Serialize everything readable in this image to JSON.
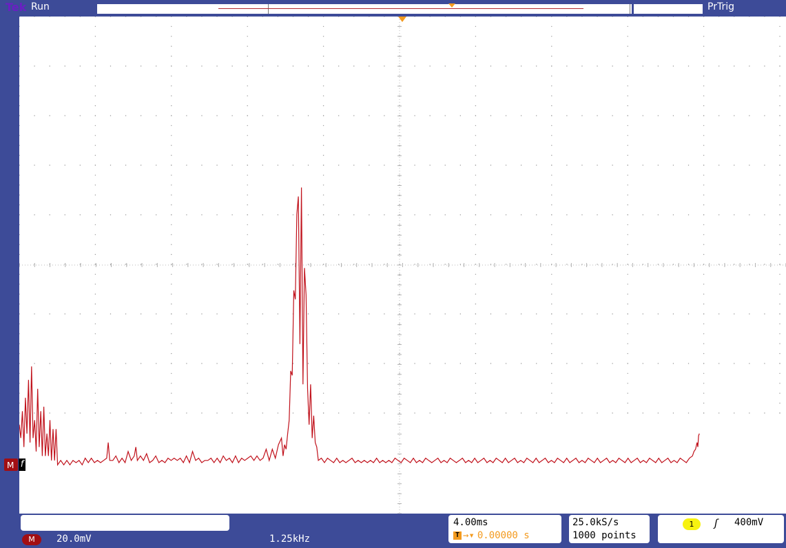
{
  "header": {
    "brand": "Tek",
    "status": "Run",
    "trigger_status": "PrTrig"
  },
  "math": {
    "badge": "M",
    "vertical_scale": "20.0mV",
    "frequency": "1.25kHz"
  },
  "horizontal": {
    "scale": "4.00ms",
    "trigger_badge": "T",
    "position": "0.00000 s"
  },
  "acquisition": {
    "sample_rate": "25.0kS/s",
    "record_length": "1000 points"
  },
  "trigger": {
    "channel": "1",
    "slope_symbol": "ʃ",
    "level": "400mV"
  },
  "colors": {
    "frame": "#3d4b98",
    "trace": "#c0101a",
    "trigger_marker": "#f39a1e",
    "channel1": "#f7f210",
    "brand": "#6a1fc3"
  },
  "waveform": {
    "description_units": "divisions",
    "divisions_x": 10,
    "divisions_y": 8,
    "points": [
      [
        0.0,
        1.3
      ],
      [
        0.02,
        1.0
      ],
      [
        0.04,
        1.6
      ],
      [
        0.06,
        0.8
      ],
      [
        0.08,
        1.9
      ],
      [
        0.1,
        1.1
      ],
      [
        0.12,
        2.3
      ],
      [
        0.14,
        0.9
      ],
      [
        0.16,
        2.6
      ],
      [
        0.18,
        1.0
      ],
      [
        0.2,
        1.4
      ],
      [
        0.22,
        0.7
      ],
      [
        0.24,
        2.1
      ],
      [
        0.26,
        0.8
      ],
      [
        0.28,
        1.6
      ],
      [
        0.3,
        0.6
      ],
      [
        0.32,
        1.7
      ],
      [
        0.34,
        0.6
      ],
      [
        0.36,
        1.1
      ],
      [
        0.38,
        0.6
      ],
      [
        0.4,
        1.4
      ],
      [
        0.42,
        0.5
      ],
      [
        0.44,
        1.2
      ],
      [
        0.46,
        0.5
      ],
      [
        0.48,
        1.2
      ],
      [
        0.5,
        0.4
      ],
      [
        0.54,
        0.5
      ],
      [
        0.58,
        0.4
      ],
      [
        0.62,
        0.5
      ],
      [
        0.66,
        0.4
      ],
      [
        0.7,
        0.5
      ],
      [
        0.74,
        0.45
      ],
      [
        0.78,
        0.5
      ],
      [
        0.82,
        0.4
      ],
      [
        0.86,
        0.55
      ],
      [
        0.9,
        0.45
      ],
      [
        0.94,
        0.55
      ],
      [
        0.98,
        0.45
      ],
      [
        1.02,
        0.5
      ],
      [
        1.06,
        0.45
      ],
      [
        1.1,
        0.5
      ],
      [
        1.14,
        0.55
      ],
      [
        1.16,
        0.9
      ],
      [
        1.18,
        0.5
      ],
      [
        1.22,
        0.5
      ],
      [
        1.26,
        0.6
      ],
      [
        1.3,
        0.45
      ],
      [
        1.34,
        0.55
      ],
      [
        1.38,
        0.45
      ],
      [
        1.42,
        0.7
      ],
      [
        1.46,
        0.5
      ],
      [
        1.5,
        0.6
      ],
      [
        1.52,
        0.8
      ],
      [
        1.54,
        0.5
      ],
      [
        1.58,
        0.6
      ],
      [
        1.62,
        0.5
      ],
      [
        1.66,
        0.65
      ],
      [
        1.7,
        0.45
      ],
      [
        1.74,
        0.5
      ],
      [
        1.78,
        0.6
      ],
      [
        1.82,
        0.45
      ],
      [
        1.86,
        0.5
      ],
      [
        1.9,
        0.45
      ],
      [
        1.94,
        0.55
      ],
      [
        1.98,
        0.5
      ],
      [
        2.02,
        0.55
      ],
      [
        2.06,
        0.5
      ],
      [
        2.1,
        0.55
      ],
      [
        2.14,
        0.45
      ],
      [
        2.18,
        0.6
      ],
      [
        2.22,
        0.45
      ],
      [
        2.26,
        0.7
      ],
      [
        2.3,
        0.5
      ],
      [
        2.34,
        0.55
      ],
      [
        2.38,
        0.45
      ],
      [
        2.42,
        0.5
      ],
      [
        2.46,
        0.5
      ],
      [
        2.5,
        0.55
      ],
      [
        2.54,
        0.45
      ],
      [
        2.58,
        0.55
      ],
      [
        2.62,
        0.45
      ],
      [
        2.66,
        0.6
      ],
      [
        2.7,
        0.5
      ],
      [
        2.74,
        0.55
      ],
      [
        2.78,
        0.45
      ],
      [
        2.82,
        0.6
      ],
      [
        2.86,
        0.45
      ],
      [
        2.9,
        0.55
      ],
      [
        2.94,
        0.5
      ],
      [
        2.98,
        0.55
      ],
      [
        3.02,
        0.6
      ],
      [
        3.06,
        0.5
      ],
      [
        3.1,
        0.6
      ],
      [
        3.14,
        0.5
      ],
      [
        3.18,
        0.55
      ],
      [
        3.22,
        0.75
      ],
      [
        3.26,
        0.5
      ],
      [
        3.3,
        0.75
      ],
      [
        3.34,
        0.55
      ],
      [
        3.38,
        0.85
      ],
      [
        3.42,
        1.0
      ],
      [
        3.44,
        0.6
      ],
      [
        3.46,
        0.85
      ],
      [
        3.48,
        0.75
      ],
      [
        3.5,
        1.1
      ],
      [
        3.52,
        1.4
      ],
      [
        3.54,
        2.5
      ],
      [
        3.56,
        2.4
      ],
      [
        3.58,
        4.3
      ],
      [
        3.6,
        4.1
      ],
      [
        3.62,
        6.0
      ],
      [
        3.64,
        6.4
      ],
      [
        3.66,
        3.1
      ],
      [
        3.68,
        6.6
      ],
      [
        3.7,
        2.2
      ],
      [
        3.72,
        4.8
      ],
      [
        3.74,
        4.2
      ],
      [
        3.76,
        2.1
      ],
      [
        3.78,
        1.3
      ],
      [
        3.8,
        2.2
      ],
      [
        3.82,
        1.0
      ],
      [
        3.84,
        1.5
      ],
      [
        3.86,
        0.9
      ],
      [
        3.88,
        0.8
      ],
      [
        3.9,
        0.5
      ],
      [
        3.94,
        0.55
      ],
      [
        3.98,
        0.45
      ],
      [
        4.02,
        0.55
      ],
      [
        4.06,
        0.5
      ],
      [
        4.1,
        0.45
      ],
      [
        4.14,
        0.55
      ],
      [
        4.18,
        0.45
      ],
      [
        4.22,
        0.5
      ],
      [
        4.26,
        0.45
      ],
      [
        4.3,
        0.5
      ],
      [
        4.34,
        0.55
      ],
      [
        4.38,
        0.45
      ],
      [
        4.42,
        0.5
      ],
      [
        4.46,
        0.45
      ],
      [
        4.5,
        0.5
      ],
      [
        4.54,
        0.45
      ],
      [
        4.58,
        0.5
      ],
      [
        4.62,
        0.45
      ],
      [
        4.66,
        0.55
      ],
      [
        4.7,
        0.45
      ],
      [
        4.74,
        0.5
      ],
      [
        4.78,
        0.45
      ],
      [
        4.82,
        0.5
      ],
      [
        4.86,
        0.45
      ],
      [
        4.9,
        0.55
      ],
      [
        4.94,
        0.5
      ],
      [
        4.98,
        0.45
      ],
      [
        5.02,
        0.55
      ],
      [
        5.06,
        0.5
      ],
      [
        5.1,
        0.45
      ],
      [
        5.14,
        0.55
      ],
      [
        5.18,
        0.45
      ],
      [
        5.22,
        0.5
      ],
      [
        5.26,
        0.45
      ],
      [
        5.3,
        0.55
      ],
      [
        5.34,
        0.5
      ],
      [
        5.38,
        0.45
      ],
      [
        5.42,
        0.5
      ],
      [
        5.46,
        0.55
      ],
      [
        5.5,
        0.45
      ],
      [
        5.54,
        0.5
      ],
      [
        5.58,
        0.45
      ],
      [
        5.62,
        0.55
      ],
      [
        5.66,
        0.5
      ],
      [
        5.7,
        0.45
      ],
      [
        5.74,
        0.5
      ],
      [
        5.78,
        0.55
      ],
      [
        5.82,
        0.45
      ],
      [
        5.86,
        0.5
      ],
      [
        5.9,
        0.45
      ],
      [
        5.94,
        0.55
      ],
      [
        5.98,
        0.45
      ],
      [
        6.02,
        0.5
      ],
      [
        6.06,
        0.55
      ],
      [
        6.1,
        0.45
      ],
      [
        6.14,
        0.5
      ],
      [
        6.18,
        0.45
      ],
      [
        6.22,
        0.55
      ],
      [
        6.26,
        0.5
      ],
      [
        6.3,
        0.45
      ],
      [
        6.34,
        0.55
      ],
      [
        6.38,
        0.45
      ],
      [
        6.42,
        0.5
      ],
      [
        6.46,
        0.55
      ],
      [
        6.5,
        0.45
      ],
      [
        6.54,
        0.5
      ],
      [
        6.58,
        0.45
      ],
      [
        6.62,
        0.55
      ],
      [
        6.66,
        0.5
      ],
      [
        6.7,
        0.45
      ],
      [
        6.74,
        0.55
      ],
      [
        6.78,
        0.45
      ],
      [
        6.82,
        0.5
      ],
      [
        6.86,
        0.55
      ],
      [
        6.9,
        0.45
      ],
      [
        6.94,
        0.5
      ],
      [
        6.98,
        0.45
      ],
      [
        7.02,
        0.55
      ],
      [
        7.06,
        0.5
      ],
      [
        7.1,
        0.45
      ],
      [
        7.14,
        0.55
      ],
      [
        7.18,
        0.45
      ],
      [
        7.22,
        0.5
      ],
      [
        7.26,
        0.55
      ],
      [
        7.3,
        0.45
      ],
      [
        7.34,
        0.5
      ],
      [
        7.38,
        0.45
      ],
      [
        7.42,
        0.55
      ],
      [
        7.46,
        0.5
      ],
      [
        7.5,
        0.45
      ],
      [
        7.54,
        0.55
      ],
      [
        7.58,
        0.45
      ],
      [
        7.62,
        0.5
      ],
      [
        7.66,
        0.55
      ],
      [
        7.7,
        0.45
      ],
      [
        7.74,
        0.5
      ],
      [
        7.78,
        0.45
      ],
      [
        7.82,
        0.55
      ],
      [
        7.86,
        0.5
      ],
      [
        7.9,
        0.45
      ],
      [
        7.94,
        0.55
      ],
      [
        7.98,
        0.45
      ],
      [
        8.02,
        0.5
      ],
      [
        8.06,
        0.55
      ],
      [
        8.1,
        0.45
      ],
      [
        8.14,
        0.5
      ],
      [
        8.18,
        0.45
      ],
      [
        8.22,
        0.55
      ],
      [
        8.26,
        0.5
      ],
      [
        8.3,
        0.45
      ],
      [
        8.34,
        0.55
      ],
      [
        8.38,
        0.45
      ],
      [
        8.42,
        0.5
      ],
      [
        8.46,
        0.55
      ],
      [
        8.5,
        0.45
      ],
      [
        8.54,
        0.5
      ],
      [
        8.58,
        0.45
      ],
      [
        8.62,
        0.55
      ],
      [
        8.66,
        0.5
      ],
      [
        8.7,
        0.45
      ],
      [
        8.74,
        0.55
      ],
      [
        8.78,
        0.6
      ],
      [
        8.8,
        0.7
      ],
      [
        8.82,
        0.75
      ],
      [
        8.84,
        0.9
      ],
      [
        8.85,
        0.8
      ],
      [
        8.86,
        1.05
      ],
      [
        8.87,
        1.1
      ]
    ]
  }
}
